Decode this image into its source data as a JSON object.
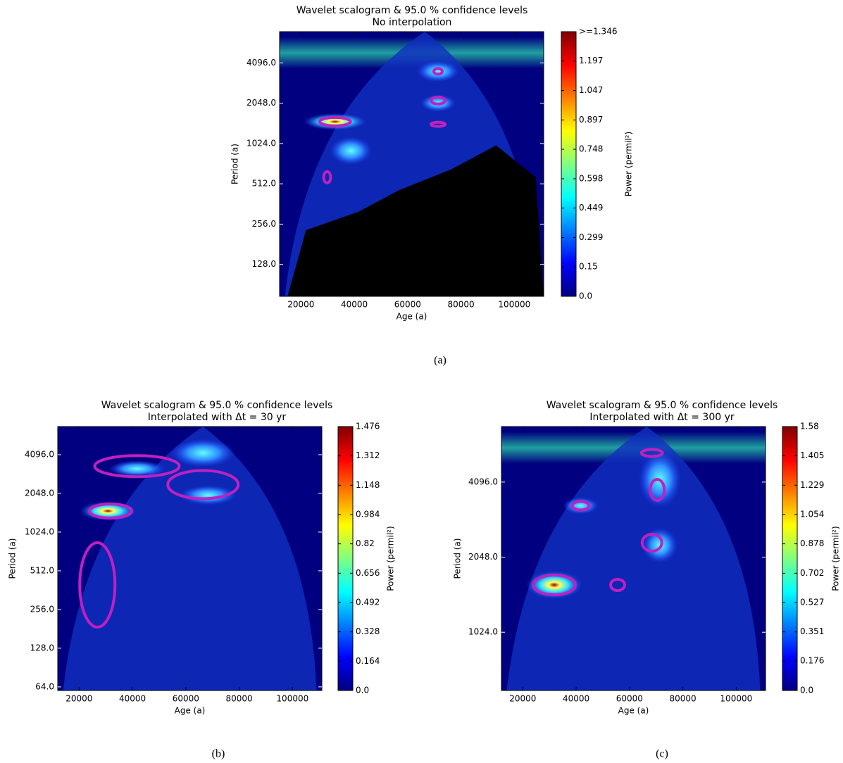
{
  "chart_data": [
    {
      "type": "heatmap",
      "title": "Wavelet scalogram & 95.0 % confidence levels",
      "subtitle": "No interpolation",
      "xlabel": "Age (a)",
      "ylabel": "Period (a)",
      "colorbar_label": "Power (permil²)",
      "caption": "(a)",
      "xlim": [
        12000,
        111000
      ],
      "xticks": [
        20000,
        40000,
        60000,
        80000,
        100000
      ],
      "ylim": [
        74,
        7000
      ],
      "yscale": "log2",
      "yticks": [
        {
          "value": 128,
          "label": "128.0"
        },
        {
          "value": 256,
          "label": "256.0"
        },
        {
          "value": 512,
          "label": "512.0"
        },
        {
          "value": 1024,
          "label": "1024.0"
        },
        {
          "value": 2048,
          "label": "2048.0"
        },
        {
          "value": 4096,
          "label": "4096.0"
        }
      ],
      "clim": [
        0,
        1.346
      ],
      "cticks": [
        {
          "value": 0,
          "label": "0.0"
        },
        0.15,
        0.299,
        0.449,
        0.598,
        0.748,
        0.897,
        1.047,
        1.197,
        {
          "value": 1.346,
          "label": ">=1.346"
        }
      ]
    },
    {
      "type": "heatmap",
      "title": "Wavelet scalogram & 95.0 % confidence levels",
      "subtitle": "Interpolated with Δt = 30 yr",
      "xlabel": "Age (a)",
      "ylabel": "Period (a)",
      "colorbar_label": "Power (permil²)",
      "caption": "(b)",
      "xlim": [
        12000,
        111000
      ],
      "xticks": [
        20000,
        40000,
        60000,
        80000,
        100000
      ],
      "ylim": [
        60,
        6780
      ],
      "yscale": "log2",
      "yticks": [
        {
          "value": 64,
          "label": "64.0"
        },
        {
          "value": 128,
          "label": "128.0"
        },
        {
          "value": 256,
          "label": "256.0"
        },
        {
          "value": 512,
          "label": "512.0"
        },
        {
          "value": 1024,
          "label": "1024.0"
        },
        {
          "value": 2048,
          "label": "2048.0"
        },
        {
          "value": 4096,
          "label": "4096.0"
        }
      ],
      "clim": [
        0,
        1.476
      ],
      "cticks": [
        {
          "value": 0,
          "label": "0.0"
        },
        0.164,
        0.328,
        0.492,
        0.656,
        0.82,
        0.984,
        1.148,
        1.312,
        1.476
      ]
    },
    {
      "type": "heatmap",
      "title": "Wavelet scalogram & 95.0 % confidence levels",
      "subtitle": "Interpolated with Δt = 300 yr",
      "xlabel": "Age (a)",
      "ylabel": "Period (a)",
      "colorbar_label": "Power (permil²)",
      "caption": "(c)",
      "xlim": [
        12000,
        111000
      ],
      "xticks": [
        20000,
        40000,
        60000,
        80000,
        100000
      ],
      "ylim": [
        598,
        6838
      ],
      "yscale": "log2",
      "yticks": [
        {
          "value": 1024,
          "label": "1024.0"
        },
        {
          "value": 2048,
          "label": "2048.0"
        },
        {
          "value": 4096,
          "label": "4096.0"
        }
      ],
      "clim": [
        0,
        1.58
      ],
      "cticks": [
        {
          "value": 0,
          "label": "0.0"
        },
        0.176,
        0.351,
        0.527,
        0.702,
        0.878,
        1.054,
        1.229,
        1.405,
        1.58
      ]
    }
  ]
}
